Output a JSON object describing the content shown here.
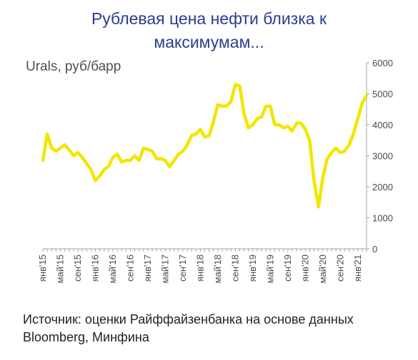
{
  "header": {
    "title_line1": "Рублевая цена нефти близка к",
    "title_line2": "максимумам..."
  },
  "footer": {
    "source_line1": "Источник: оценки Райффайзенбанка на основе данных",
    "source_line2": "Bloomberg, Минфина"
  },
  "chart_data": {
    "type": "line",
    "ylabel": "Urals, руб/барр",
    "ylim": [
      0,
      6000
    ],
    "y_ticks": [
      "0",
      "1000",
      "2000",
      "3000",
      "4000",
      "5000",
      "6000"
    ],
    "y_axis_position": "right",
    "x_tick_labels": [
      "янв'15",
      "май'15",
      "сен'15",
      "янв'16",
      "май'16",
      "сен'16",
      "янв'17",
      "май'17",
      "сен'17",
      "янв'18",
      "май'18",
      "сен'18",
      "янв'19",
      "май'19",
      "сен'19",
      "янв'20",
      "май'20",
      "сен'20",
      "янв'21"
    ],
    "grid": false,
    "color": "#f2e600",
    "series": [
      {
        "values": [
          2850,
          3700,
          3250,
          3150,
          3250,
          3350,
          3200,
          3000,
          3100,
          2950,
          2750,
          2550,
          2200,
          2350,
          2550,
          2650,
          2950,
          3050,
          2800,
          2850,
          2850,
          3000,
          2850,
          3250,
          3200,
          3150,
          2900,
          2900,
          2850,
          2650,
          2850,
          3050,
          3150,
          3350,
          3650,
          3700,
          3850,
          3600,
          3650,
          4100,
          4650,
          4600,
          4600,
          4750,
          5300,
          5250,
          4350,
          3900,
          4000,
          4200,
          4250,
          4600,
          4600,
          4000,
          4000,
          3900,
          3950,
          3800,
          4050,
          4050,
          3850,
          3500,
          2200,
          1350,
          2300,
          2900,
          3100,
          3250,
          3100,
          3150,
          3350,
          3700,
          4200,
          4700,
          4950
        ]
      }
    ]
  }
}
